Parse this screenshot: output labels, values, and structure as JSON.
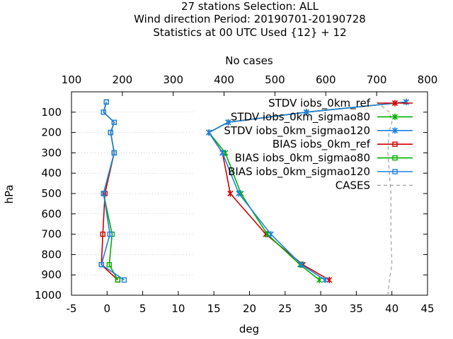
{
  "chart_data": {
    "type": "line",
    "title_lines": [
      "27 stations Selection: ALL",
      "Wind direction  Period: 20190701-20190728",
      "Statistics at 00 UTC  Used {12} + 12"
    ],
    "xlabel": "deg",
    "ylabel": "hPa",
    "x2label": "No cases",
    "xlim": [
      -5,
      45
    ],
    "x2lim": [
      100,
      800
    ],
    "ylim": [
      1000,
      0
    ],
    "x_ticks": [
      "-5",
      "0",
      "5",
      "10",
      "15",
      "20",
      "25",
      "30",
      "35",
      "40",
      "45"
    ],
    "x2_ticks": [
      "100",
      "200",
      "300",
      "400",
      "500",
      "600",
      "700",
      "800"
    ],
    "y_ticks": [
      "100",
      "200",
      "300",
      "400",
      "500",
      "600",
      "700",
      "800",
      "900",
      "1000"
    ],
    "legend_position": "top-right",
    "series": [
      {
        "name": "STDV iobs_0km_ref",
        "color": "#d00000",
        "marker": "x",
        "points": [
          [
            42,
            50
          ],
          [
            28,
            100
          ],
          [
            17,
            150
          ],
          [
            14.3,
            200
          ],
          [
            16.2,
            300
          ],
          [
            17.3,
            500
          ],
          [
            22.3,
            700
          ],
          [
            27.5,
            850
          ],
          [
            31.2,
            925
          ]
        ]
      },
      {
        "name": "STDV iobs_0km_sigmao80",
        "color": "#00b000",
        "marker": "x",
        "points": [
          [
            42,
            50
          ],
          [
            28,
            100
          ],
          [
            17,
            150
          ],
          [
            14.3,
            200
          ],
          [
            16.6,
            300
          ],
          [
            18.8,
            500
          ],
          [
            22.5,
            700
          ],
          [
            27.1,
            850
          ],
          [
            29.8,
            925
          ]
        ]
      },
      {
        "name": "STDV iobs_0km_sigmao120",
        "color": "#1e80e0",
        "marker": "x",
        "points": [
          [
            42,
            50
          ],
          [
            28,
            100
          ],
          [
            17,
            150
          ],
          [
            14.3,
            200
          ],
          [
            16.2,
            300
          ],
          [
            18.5,
            500
          ],
          [
            23,
            700
          ],
          [
            27.3,
            850
          ],
          [
            30.6,
            925
          ]
        ]
      },
      {
        "name": "BIAS iobs_0km_ref",
        "color": "#d00000",
        "marker": "square",
        "points": [
          [
            -0.1,
            50
          ],
          [
            -0.5,
            100
          ],
          [
            1.0,
            150
          ],
          [
            0.5,
            200
          ],
          [
            1.0,
            300
          ],
          [
            -0.3,
            500
          ],
          [
            -0.6,
            700
          ],
          [
            -0.8,
            850
          ],
          [
            1.5,
            925
          ]
        ]
      },
      {
        "name": "BIAS iobs_0km_sigmao80",
        "color": "#00b000",
        "marker": "square",
        "points": [
          [
            -0.1,
            50
          ],
          [
            -0.5,
            100
          ],
          [
            1.0,
            150
          ],
          [
            0.5,
            200
          ],
          [
            1.0,
            300
          ],
          [
            -0.5,
            500
          ],
          [
            0.7,
            700
          ],
          [
            0.3,
            850
          ],
          [
            1.5,
            925
          ]
        ]
      },
      {
        "name": "BIAS iobs_0km_sigmao120",
        "color": "#1e80e0",
        "marker": "square",
        "points": [
          [
            -0.1,
            50
          ],
          [
            -0.5,
            100
          ],
          [
            1.0,
            150
          ],
          [
            0.5,
            200
          ],
          [
            1.0,
            300
          ],
          [
            -0.5,
            500
          ],
          [
            0.4,
            700
          ],
          [
            -0.8,
            850
          ],
          [
            2.4,
            925
          ]
        ]
      },
      {
        "name": "CASES",
        "color": "#a0a0a0",
        "marker": "none",
        "dash": true,
        "axis": "x2",
        "points": [
          [
            700,
            50
          ],
          [
            725,
            100
          ],
          [
            730,
            150
          ],
          [
            724,
            200
          ],
          [
            722,
            300
          ],
          [
            728,
            500
          ],
          [
            728,
            700
          ],
          [
            730,
            850
          ],
          [
            725,
            925
          ],
          [
            722,
            1000
          ]
        ]
      }
    ]
  }
}
